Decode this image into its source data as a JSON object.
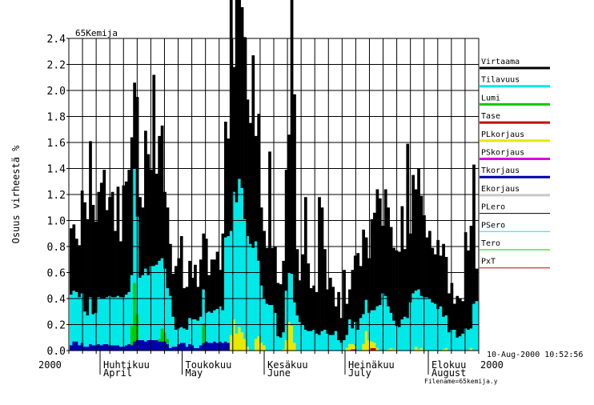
{
  "chart_data": {
    "type": "area",
    "title": "65Kemija",
    "ylabel": "Osuus virheestä %",
    "ylim": [
      0,
      2.4
    ],
    "y_ticks": [
      0.0,
      0.2,
      0.4,
      0.6,
      0.8,
      1.0,
      1.2,
      1.4,
      1.6,
      1.8,
      2.0,
      2.2,
      2.4
    ],
    "x_start_label": "2000",
    "x_end_label": "2000",
    "months": [
      {
        "fi": "Huhtikuu",
        "en": "April"
      },
      {
        "fi": "Toukokuu",
        "en": "May"
      },
      {
        "fi": "Kesäkuu",
        "en": "June"
      },
      {
        "fi": "Heinäkuu",
        "en": "July"
      },
      {
        "fi": "Elokuu",
        "en": "August"
      }
    ],
    "timestamp": "10-Aug-2000 10:52:56",
    "filename": "Filename=65kemija.y",
    "grid": true,
    "legend_position": "right",
    "legend": [
      {
        "name": "Virtaama",
        "color": "#000000",
        "style": "thick"
      },
      {
        "name": "Tilavuus",
        "color": "#00e8e8",
        "style": "thick"
      },
      {
        "name": "Lumi",
        "color": "#00cc00",
        "style": "thick"
      },
      {
        "name": "Tase",
        "color": "#cc0000",
        "style": "thick"
      },
      {
        "name": "PLkorjaus",
        "color": "#e8e800",
        "style": "thick"
      },
      {
        "name": "PSkorjaus",
        "color": "#dd00dd",
        "style": "thick"
      },
      {
        "name": "Tkorjaus",
        "color": "#0000aa",
        "style": "thick"
      },
      {
        "name": "Ekorjaus",
        "color": "#c8c8c8",
        "style": "thick"
      },
      {
        "name": "PLero",
        "color": "#000000",
        "style": "thin"
      },
      {
        "name": "PSero",
        "color": "#00e8e8",
        "style": "thin"
      },
      {
        "name": "Tero",
        "color": "#00cc00",
        "style": "thin"
      },
      {
        "name": "PxT",
        "color": "#cc0000",
        "style": "thin"
      }
    ],
    "stack_order": [
      "Tkorjaus",
      "Lumi",
      "Tase",
      "PLkorjaus",
      "Tilavuus",
      "Virtaama"
    ],
    "series": [
      {
        "name": "Virtaama",
        "values": [
          0.51,
          0.51,
          0.41,
          0.4,
          0.79,
          0.84,
          0.74,
          1.2,
          0.84,
          0.7,
          0.81,
          0.89,
          0.99,
          0.67,
          0.76,
          0.81,
          0.51,
          0.84,
          0.43,
          0.86,
          0.87,
          0.94,
          1.06,
          0.66,
          0.92,
          0.62,
          0.52,
          1.06,
          0.93,
          0.74,
          1.47,
          0.7,
          0.96,
          1.02,
          0.59,
          0.62,
          0.4,
          0.33,
          0.49,
          0.54,
          0.7,
          0.31,
          0.33,
          0.44,
          0.32,
          0.42,
          0.26,
          0.44,
          0.43,
          0.57,
          0.28,
          0.41,
          0.39,
          0.44,
          0.28,
          0.59,
          0.89,
          0.75,
          1.99,
          0.96,
          1.72,
          1.99,
          1.39,
          1.4,
          1.05,
          0.93,
          1.48,
          0.81,
          1.13,
          0.6,
          0.52,
          0.43,
          1.18,
          0.44,
          0.51,
          0.41,
          0.41,
          0.55,
          0.93,
          1.06,
          2.25,
          1.6,
          0.51,
          0.32,
          0.54,
          1.02,
          0.52,
          0.33,
          0.34,
          0.32,
          1.06,
          0.95,
          0.62,
          0.34,
          0.44,
          0.37,
          0.19,
          0.37,
          0.19,
          0.54,
          0.24,
          0.23,
          0.45,
          0.51,
          0.59,
          0.4,
          0.65,
          0.48,
          0.42,
          0.7,
          0.75,
          0.9,
          0.82,
          0.52,
          0.82,
          0.76,
          0.66,
          0.56,
          0.58,
          0.58,
          0.87,
          0.52,
          1.34,
          0.53,
          0.91,
          0.78,
          0.93,
          0.77,
          0.63,
          0.46,
          0.52,
          0.42,
          0.38,
          0.53,
          0.39,
          0.56,
          0.45,
          0.3,
          0.36,
          0.2,
          0.32,
          0.29,
          0.25,
          0.74,
          0.61,
          0.79,
          1.07,
          0.25
        ]
      },
      {
        "name": "Tilavuus",
        "values": [
          0.39,
          0.39,
          0.38,
          0.37,
          0.38,
          0.27,
          0.24,
          0.36,
          0.24,
          0.25,
          0.36,
          0.36,
          0.35,
          0.36,
          0.38,
          0.37,
          0.37,
          0.38,
          0.38,
          0.38,
          0.39,
          0.4,
          0.39,
          0.88,
          0.75,
          0.48,
          0.5,
          0.56,
          0.5,
          0.57,
          0.57,
          0.58,
          0.6,
          0.54,
          0.49,
          0.39,
          0.4,
          0.23,
          0.13,
          0.12,
          0.12,
          0.11,
          0.13,
          0.2,
          0.2,
          0.22,
          0.21,
          0.22,
          0.26,
          0.22,
          0.24,
          0.23,
          0.24,
          0.26,
          0.27,
          0.25,
          0.8,
          0.82,
          0.8,
          0.98,
          1.01,
          1.14,
          1.11,
          0.92,
          0.85,
          0.82,
          0.79,
          0.75,
          0.58,
          0.44,
          0.36,
          0.36,
          0.35,
          0.35,
          0.29,
          0.11,
          0.1,
          0.13,
          0.38,
          0.38,
          0.4,
          0.31,
          0.27,
          0.22,
          0.2,
          0.16,
          0.15,
          0.15,
          0.16,
          0.13,
          0.12,
          0.15,
          0.16,
          0.13,
          0.12,
          0.12,
          0.15,
          0.08,
          0.06,
          0.08,
          0.1,
          0.19,
          0.12,
          0.18,
          0.16,
          0.25,
          0.23,
          0.24,
          0.21,
          0.24,
          0.25,
          0.32,
          0.35,
          0.44,
          0.42,
          0.33,
          0.27,
          0.22,
          0.18,
          0.18,
          0.24,
          0.26,
          0.25,
          0.37,
          0.44,
          0.43,
          0.46,
          0.4,
          0.4,
          0.41,
          0.4,
          0.37,
          0.36,
          0.32,
          0.34,
          0.25,
          0.25,
          0.14,
          0.16,
          0.16,
          0.1,
          0.11,
          0.13,
          0.17,
          0.16,
          0.15,
          0.36,
          0.38
        ]
      },
      {
        "name": "Lumi",
        "values": [
          0,
          0,
          0,
          0,
          0,
          0,
          0,
          0,
          0,
          0,
          0,
          0,
          0,
          0,
          0,
          0,
          0,
          0,
          0,
          0,
          0,
          0,
          0.15,
          0.45,
          0.2,
          0,
          0,
          0,
          0,
          0,
          0,
          0,
          0.02,
          0.1,
          0.07,
          0.04,
          0,
          0,
          0,
          0,
          0,
          0,
          0,
          0,
          0,
          0,
          0,
          0,
          0.15,
          0,
          0,
          0,
          0,
          0,
          0,
          0,
          0,
          0,
          0,
          0,
          0,
          0,
          0,
          0,
          0,
          0,
          0,
          0,
          0,
          0,
          0,
          0,
          0,
          0,
          0,
          0,
          0,
          0,
          0,
          0,
          0,
          0,
          0,
          0,
          0,
          0,
          0,
          0,
          0,
          0,
          0,
          0,
          0,
          0,
          0,
          0,
          0,
          0,
          0,
          0,
          0,
          0,
          0,
          0,
          0,
          0,
          0,
          0,
          0,
          0,
          0,
          0,
          0,
          0,
          0,
          0,
          0,
          0,
          0,
          0,
          0,
          0,
          0,
          0,
          0,
          0,
          0,
          0,
          0,
          0,
          0,
          0,
          0,
          0,
          0,
          0,
          0,
          0,
          0,
          0,
          0,
          0,
          0,
          0,
          0,
          0,
          0,
          0
        ]
      },
      {
        "name": "Tase",
        "values": [
          0,
          0,
          0,
          0,
          0,
          0,
          0,
          0,
          0,
          0,
          0,
          0,
          0,
          0,
          0,
          0,
          0,
          0,
          0,
          0,
          0,
          0,
          0,
          0,
          0,
          0,
          0,
          0,
          0,
          0,
          0,
          0,
          0,
          0,
          0,
          0,
          0,
          0,
          0,
          0,
          0,
          0,
          0,
          0,
          0,
          0,
          0,
          0,
          0,
          0,
          0,
          0,
          0,
          0,
          0,
          0,
          0,
          0,
          0,
          0,
          0,
          0,
          0,
          0,
          0,
          0,
          0,
          0,
          0,
          0,
          0,
          0,
          0,
          0,
          0,
          0,
          0,
          0,
          0,
          0,
          0,
          0,
          0,
          0,
          0,
          0,
          0,
          0,
          0,
          0,
          0,
          0,
          0,
          0,
          0,
          0,
          0,
          0,
          0,
          0,
          0,
          0,
          0.01,
          0.01,
          0,
          0,
          0,
          0,
          0,
          0.02,
          0.02,
          0,
          0,
          0,
          0,
          0,
          0,
          0,
          0,
          0,
          0,
          0,
          0,
          0,
          0,
          0,
          0,
          0,
          0,
          0,
          0,
          0,
          0,
          0,
          0,
          0,
          0,
          0,
          0,
          0,
          0,
          0,
          0,
          0,
          0,
          0
        ]
      },
      {
        "name": "PLkorjaus",
        "values": [
          0,
          0,
          0,
          0,
          0,
          0,
          0,
          0,
          0,
          0,
          0,
          0,
          0,
          0,
          0,
          0,
          0,
          0,
          0,
          0,
          0,
          0,
          0,
          0,
          0,
          0,
          0,
          0,
          0,
          0,
          0,
          0,
          0,
          0,
          0,
          0,
          0,
          0,
          0,
          0,
          0,
          0,
          0,
          0,
          0,
          0,
          0,
          0,
          0,
          0,
          0,
          0,
          0,
          0,
          0,
          0,
          0,
          0,
          0.12,
          0.24,
          0.13,
          0.18,
          0.14,
          0.09,
          0.03,
          0,
          0,
          0.09,
          0.11,
          0.06,
          0.04,
          0,
          0,
          0,
          0,
          0,
          0,
          0.01,
          0.08,
          0.22,
          0.19,
          0.06,
          0,
          0,
          0,
          0,
          0,
          0,
          0,
          0,
          0,
          0,
          0,
          0,
          0,
          0,
          0,
          0,
          0,
          0,
          0.02,
          0.05,
          0.04,
          0.03,
          0,
          0,
          0.05,
          0.15,
          0.08,
          0.05,
          0.04,
          0.02,
          0,
          0,
          0,
          0.01,
          0.02,
          0.01,
          0.01,
          0,
          0,
          0,
          0,
          0,
          0,
          0.03,
          0.01,
          0.02,
          0.01,
          0,
          0,
          0,
          0,
          0,
          0,
          0.01,
          0.02,
          0,
          0,
          0,
          0,
          0,
          0,
          0,
          0,
          0.02,
          0,
          0
        ]
      },
      {
        "name": "Tkorjaus",
        "values": [
          0.04,
          0.07,
          0.07,
          0.04,
          0.06,
          0.03,
          0.03,
          0.05,
          0.04,
          0.04,
          0.05,
          0.04,
          0.05,
          0.05,
          0.04,
          0.04,
          0.04,
          0.04,
          0.03,
          0.03,
          0.04,
          0.05,
          0.04,
          0.07,
          0.08,
          0.08,
          0.08,
          0.07,
          0.08,
          0.08,
          0.08,
          0.08,
          0.07,
          0.07,
          0.07,
          0.05,
          0.02,
          0.03,
          0.03,
          0.05,
          0.06,
          0.06,
          0.03,
          0.05,
          0.04,
          0.02,
          0.02,
          0.04,
          0.06,
          0.07,
          0.06,
          0.06,
          0.07,
          0.06,
          0.07,
          0.06,
          0.07,
          0.06,
          0,
          0,
          0,
          0,
          0,
          0,
          0,
          0,
          0,
          0,
          0,
          0,
          0,
          0,
          0,
          0,
          0,
          0,
          0,
          0,
          0,
          0,
          0,
          0,
          0,
          0,
          0,
          0,
          0,
          0,
          0,
          0,
          0,
          0,
          0,
          0,
          0,
          0,
          0,
          0,
          0,
          0,
          0,
          0,
          0,
          0,
          0,
          0,
          0,
          0,
          0,
          0,
          0,
          0,
          0,
          0,
          0,
          0,
          0,
          0,
          0,
          0,
          0,
          0,
          0,
          0,
          0,
          0,
          0,
          0,
          0,
          0,
          0,
          0,
          0,
          0,
          0,
          0,
          0,
          0,
          0,
          0,
          0,
          0,
          0,
          0,
          0,
          0,
          0,
          0
        ]
      }
    ]
  }
}
